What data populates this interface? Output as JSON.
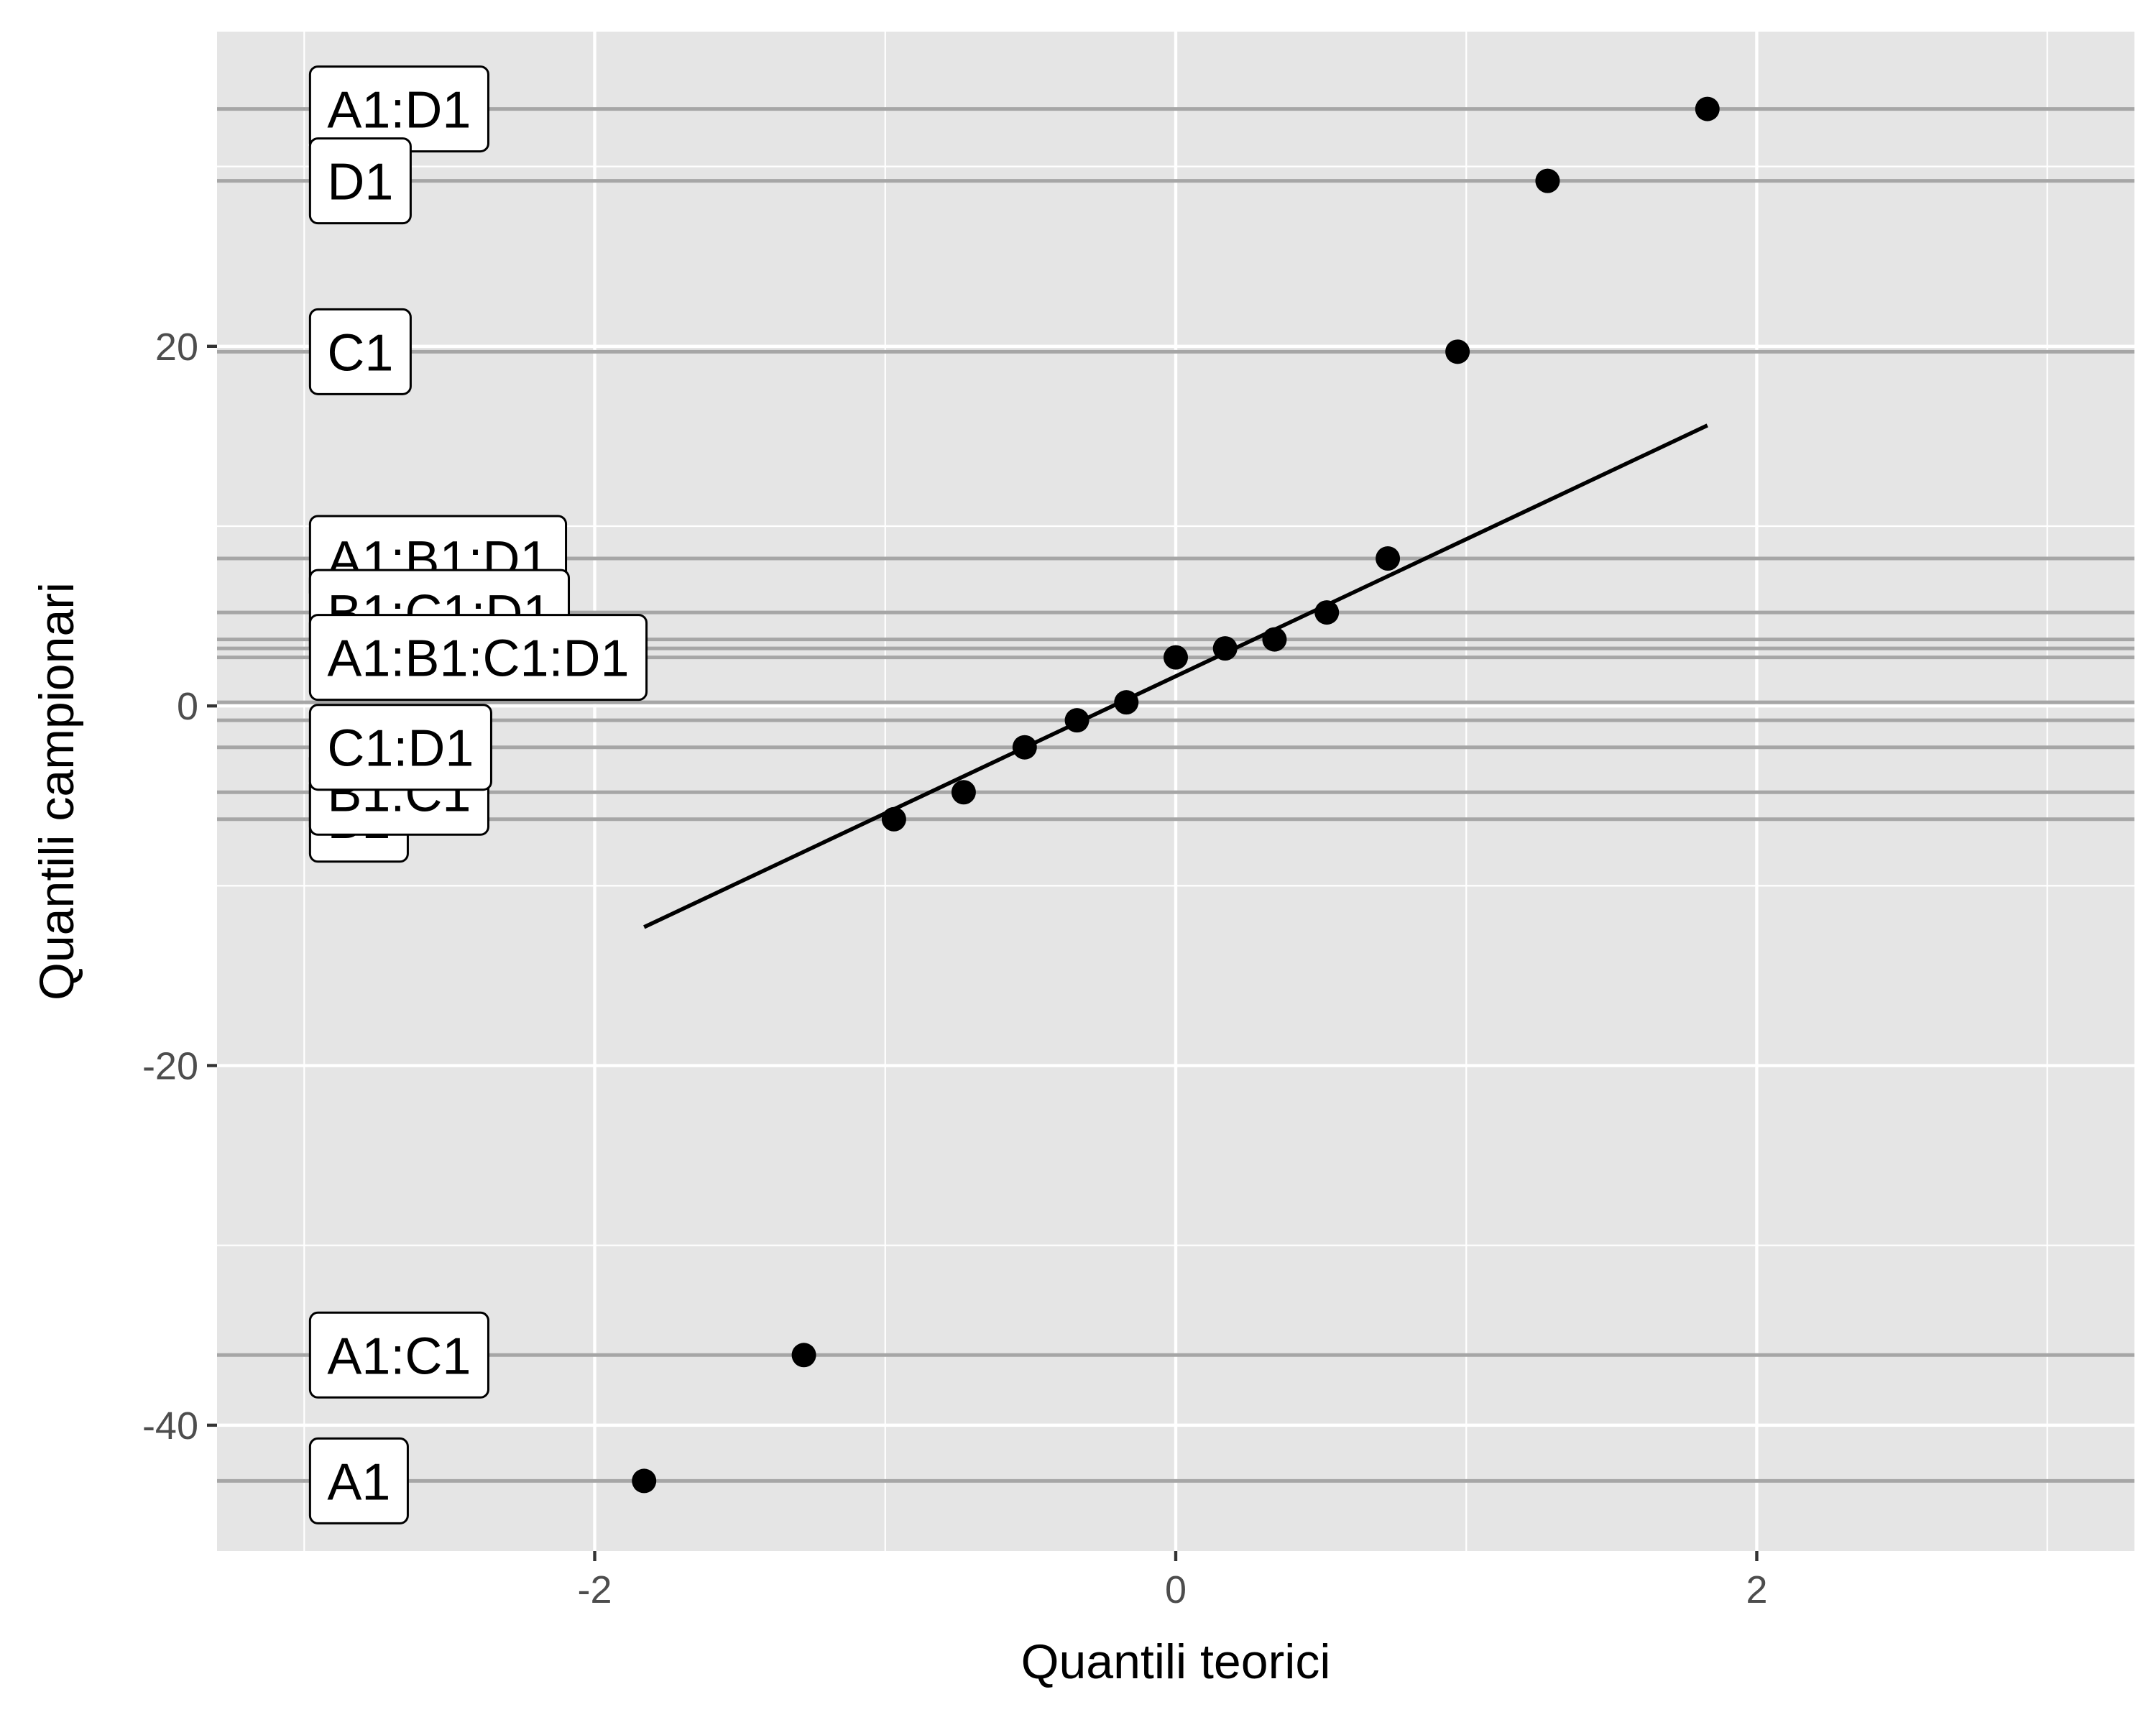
{
  "chart_data": {
    "type": "scatter",
    "title": "",
    "xlabel": "Quantili teorici",
    "ylabel": "Quantili campionari",
    "xlim": [
      -3.3,
      3.3
    ],
    "ylim": [
      -47,
      37.5
    ],
    "x_ticks": [
      -2,
      0,
      2
    ],
    "y_ticks": [
      -40,
      -20,
      0,
      20
    ],
    "x_tick_labels": [
      "-2",
      "0",
      "2"
    ],
    "y_tick_labels": [
      "-40",
      "-20",
      "0",
      "20"
    ],
    "grid": true,
    "legend": "none",
    "colors": {
      "panel_background": "#e5e5e5",
      "grid": "#ffffff",
      "reference_lines": "#a6a6a6",
      "points": "#000000",
      "qq_line": "#000000",
      "label_fill": "#ffffff"
    },
    "points": [
      {
        "x": -1.83,
        "y": -43.1
      },
      {
        "x": -1.28,
        "y": -36.1
      },
      {
        "x": -0.97,
        "y": -6.3
      },
      {
        "x": -0.73,
        "y": -4.8
      },
      {
        "x": -0.52,
        "y": -2.3
      },
      {
        "x": -0.34,
        "y": -0.8
      },
      {
        "x": -0.17,
        "y": 0.2
      },
      {
        "x": 0.0,
        "y": 2.7
      },
      {
        "x": 0.17,
        "y": 3.2
      },
      {
        "x": 0.34,
        "y": 3.7
      },
      {
        "x": 0.52,
        "y": 5.2
      },
      {
        "x": 0.73,
        "y": 8.2
      },
      {
        "x": 0.97,
        "y": 19.7
      },
      {
        "x": 1.28,
        "y": 29.2
      },
      {
        "x": 1.83,
        "y": 33.2
      }
    ],
    "qq_line": {
      "x": [
        -1.83,
        1.83
      ],
      "y": [
        -12.3,
        15.6
      ]
    },
    "reference_lines_y": [
      33.2,
      29.2,
      19.7,
      8.2,
      5.2,
      3.7,
      3.2,
      2.7,
      0.2,
      -0.8,
      -2.3,
      -4.8,
      -6.3,
      -36.1,
      -43.1
    ],
    "effect_labels": [
      {
        "text": "A1:D1",
        "y": 33.2
      },
      {
        "text": "D1",
        "y": 29.2
      },
      {
        "text": "C1",
        "y": 19.7
      },
      {
        "text": "A1:B1:D1",
        "y": 8.2
      },
      {
        "text": "B1:C1:D1",
        "y": 5.2
      },
      {
        "text": "A1:B1:C1:D1",
        "y": 2.7
      },
      {
        "text": "B1",
        "y": -6.3
      },
      {
        "text": "B1:C1",
        "y": -4.8
      },
      {
        "text": "C1:D1",
        "y": -2.3
      },
      {
        "text": "A1:C1",
        "y": -36.1
      },
      {
        "text": "A1",
        "y": -43.1
      }
    ],
    "effect_label_x": -2.98
  }
}
